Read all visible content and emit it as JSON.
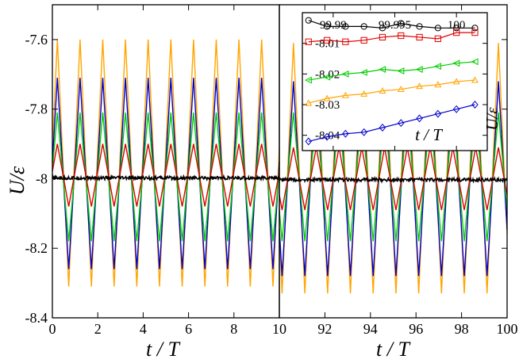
{
  "chart_data": [
    {
      "type": "line",
      "panel": "left",
      "xlabel": "t / T",
      "ylabel": "U/ε",
      "xlim": [
        0,
        10
      ],
      "ylim": [
        -8.4,
        -7.5
      ],
      "xticks": [
        0,
        2,
        4,
        6,
        8,
        10
      ],
      "yticks": [
        -7.6,
        -7.8,
        -8,
        -8.2,
        -8.4
      ],
      "ytick_labels": [
        "-7.6",
        "-7.8",
        "-8",
        "-8.2",
        "-8.4"
      ],
      "period": 1.0,
      "first_peak": 0.22,
      "series": [
        {
          "name": "black",
          "color": "#000000",
          "shape": "noise",
          "mean": -7.998,
          "noise": 0.005
        },
        {
          "name": "red",
          "color": "#e00000",
          "shape": "triangle",
          "max": -7.9,
          "min": -8.08
        },
        {
          "name": "green",
          "color": "#00cc00",
          "shape": "triangle",
          "max": -7.81,
          "min": -8.18
        },
        {
          "name": "blue",
          "color": "#0000cc",
          "shape": "triangle",
          "max": -7.71,
          "min": -8.26
        },
        {
          "name": "orange",
          "color": "#ffa500",
          "shape": "triangle",
          "max": -7.6,
          "min": -8.31
        }
      ]
    },
    {
      "type": "line",
      "panel": "right",
      "xlabel": "t / T",
      "xlim": [
        90,
        100
      ],
      "ylim": [
        -8.4,
        -7.5
      ],
      "xticks": [
        92,
        94,
        96,
        98,
        100
      ],
      "period": 1.0,
      "first_peak": 90.62,
      "series": [
        {
          "name": "black",
          "color": "#000000",
          "shape": "noise",
          "mean": -8.003,
          "noise": 0.005
        },
        {
          "name": "red",
          "color": "#e00000",
          "shape": "triangle",
          "max": -7.91,
          "min": -8.09
        },
        {
          "name": "green",
          "color": "#00cc00",
          "shape": "triangle",
          "max": -7.81,
          "min": -8.18
        },
        {
          "name": "blue",
          "color": "#0000cc",
          "shape": "triangle",
          "max": -7.72,
          "min": -8.28
        },
        {
          "name": "orange",
          "color": "#ffa500",
          "shape": "triangle",
          "max": -7.61,
          "min": -8.33
        }
      ]
    },
    {
      "type": "line",
      "panel": "inset",
      "xlabel": "t / T",
      "ylabel": "U/ε",
      "xlim": [
        99.9875,
        100.0025
      ],
      "ylim": [
        -8.045,
        -8.0
      ],
      "xticks": [
        99.99,
        99.995,
        100
      ],
      "xtick_labels": [
        "99.99",
        "99.995",
        "100"
      ],
      "yticks": [
        -8.01,
        -8.02,
        -8.03,
        -8.04
      ],
      "ytick_labels": [
        "-8.01",
        "-8.02",
        "-8.03",
        "-8.04"
      ],
      "x": [
        99.988,
        99.9895,
        99.991,
        99.9925,
        99.994,
        99.9955,
        99.997,
        99.9985,
        100.0,
        100.0015
      ],
      "series": [
        {
          "name": "black",
          "color": "#000000",
          "marker": "circle",
          "values": [
            -8.0025,
            -8.0045,
            -8.0045,
            -8.0045,
            -8.005,
            -8.0035,
            -8.0045,
            -8.005,
            -8.005,
            -8.005
          ]
        },
        {
          "name": "red",
          "color": "#e00000",
          "marker": "square",
          "values": [
            -8.0095,
            -8.009,
            -8.0095,
            -8.009,
            -8.008,
            -8.0075,
            -8.008,
            -8.0085,
            -8.0065,
            -8.0065
          ]
        },
        {
          "name": "green",
          "color": "#00cc00",
          "marker": "triangle-left",
          "values": [
            -8.022,
            -8.021,
            -8.02,
            -8.0195,
            -8.0185,
            -8.019,
            -8.0185,
            -8.0175,
            -8.0165,
            -8.016
          ]
        },
        {
          "name": "orange",
          "color": "#ffa500",
          "marker": "triangle-up",
          "values": [
            -8.0295,
            -8.028,
            -8.027,
            -8.0265,
            -8.0255,
            -8.025,
            -8.024,
            -8.0235,
            -8.0225,
            -8.022
          ]
        },
        {
          "name": "blue",
          "color": "#0000cc",
          "marker": "diamond",
          "values": [
            -8.042,
            -8.0405,
            -8.0395,
            -8.039,
            -8.0375,
            -8.036,
            -8.0345,
            -8.033,
            -8.0315,
            -8.03
          ]
        }
      ]
    }
  ]
}
